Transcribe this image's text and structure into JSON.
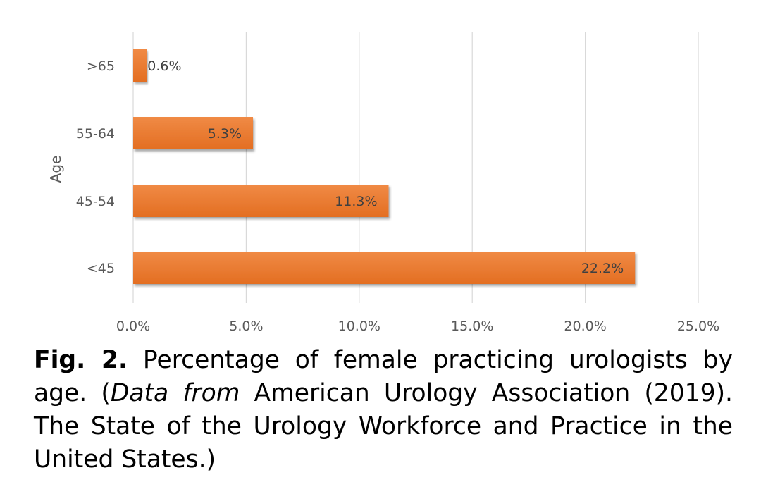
{
  "chart_data": {
    "type": "bar",
    "orientation": "horizontal",
    "categories": [
      ">65",
      "55-64",
      "45-54",
      "<45"
    ],
    "values": [
      0.6,
      5.3,
      11.3,
      22.2
    ],
    "data_labels": [
      "0.6%",
      "5.3%",
      "11.3%",
      "22.2%"
    ],
    "title": "",
    "xlabel": "",
    "ylabel": "Age",
    "xlim": [
      0,
      25
    ],
    "x_ticks": [
      "0.0%",
      "5.0%",
      "10.0%",
      "15.0%",
      "20.0%",
      "25.0%"
    ],
    "grid": "vertical",
    "bar_color": "#ED7D31"
  },
  "caption": {
    "label": "Fig. 2.",
    "text_before_italic": " Percentage of female practicing urologists by age. (",
    "italic": "Data from",
    "text_after_italic": " American Urology Association (2019). The State of the Urology Workforce and Practice in the United States.)"
  }
}
